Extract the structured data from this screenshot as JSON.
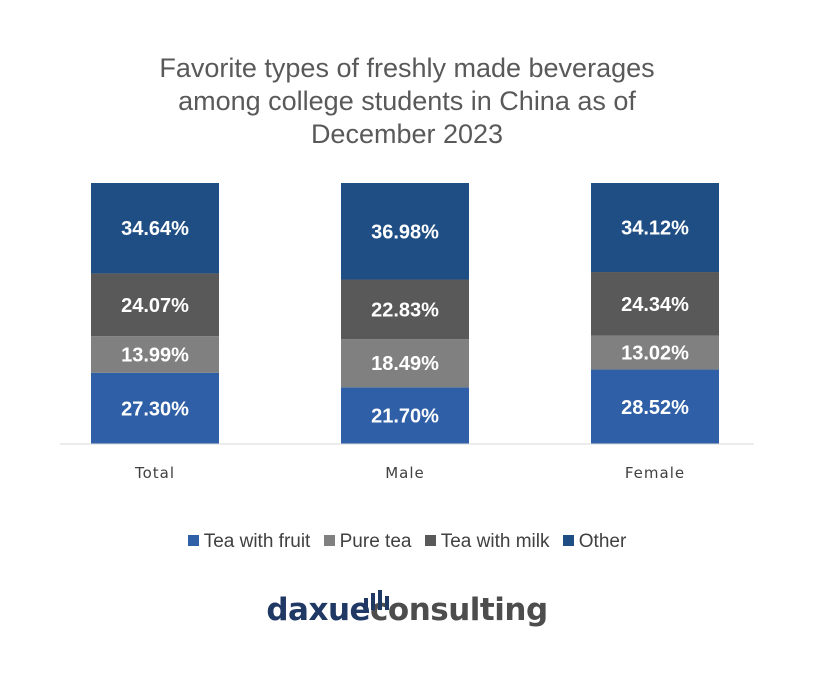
{
  "title_lines": [
    "Favorite types of freshly made beverages",
    "among college students in China as of",
    "December 2023"
  ],
  "chart_data": {
    "type": "bar",
    "stacked": true,
    "title": "Favorite types of freshly made beverages among college students in China as of December 2023",
    "categories": [
      "Total",
      "Male",
      "Female"
    ],
    "series": [
      {
        "name": "Tea with fruit",
        "color": "#2e5fa7",
        "values": [
          27.3,
          21.7,
          28.52
        ],
        "labels": [
          "27.30%",
          "21.70%",
          "28.52%"
        ]
      },
      {
        "name": "Pure tea",
        "color": "#808080",
        "values": [
          13.99,
          18.49,
          13.02
        ],
        "labels": [
          "13.99%",
          "18.49%",
          "13.02%"
        ]
      },
      {
        "name": "Tea with milk",
        "color": "#595959",
        "values": [
          24.07,
          22.83,
          24.34
        ],
        "labels": [
          "24.07%",
          "22.83%",
          "24.34%"
        ]
      },
      {
        "name": "Other",
        "color": "#1f4e85",
        "values": [
          34.64,
          36.98,
          34.12
        ],
        "labels": [
          "34.64%",
          "36.98%",
          "34.12%"
        ]
      }
    ],
    "ylim": [
      0,
      100
    ],
    "grid": false,
    "legend_position": "bottom"
  },
  "legend": [
    {
      "label": "Tea with fruit",
      "color": "#2e5fa7"
    },
    {
      "label": "Pure tea",
      "color": "#808080"
    },
    {
      "label": "Tea with milk",
      "color": "#595959"
    },
    {
      "label": "Other",
      "color": "#1f4e85"
    }
  ],
  "logo": {
    "part1": "daxue",
    "part2": "consulting"
  }
}
